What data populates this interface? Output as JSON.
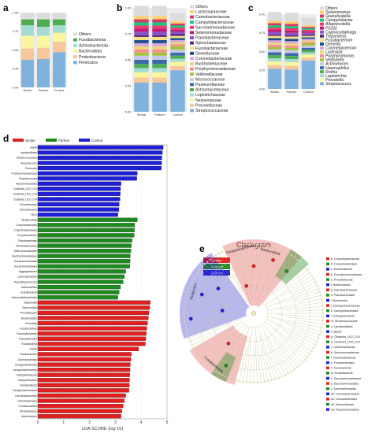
{
  "panel_labels": [
    "a",
    "b",
    "c",
    "d",
    "e"
  ],
  "chart_data": [
    {
      "id": "a",
      "type": "bar",
      "stacked": true,
      "categories": [
        "Stroke",
        "Partner",
        "Control"
      ],
      "ylim": [
        0,
        1
      ],
      "yticks": [
        "0.00",
        "0.25",
        "0.50",
        "0.75",
        "1.00"
      ],
      "series": [
        {
          "name": "Firmicutes",
          "color": "#7fb2dc",
          "values": [
            0.37,
            0.38,
            0.47
          ]
        },
        {
          "name": "Proteobacteria",
          "color": "#f6c79a",
          "values": [
            0.15,
            0.15,
            0.14
          ]
        },
        {
          "name": "Bacteroidota",
          "color": "#f9f69d",
          "values": [
            0.17,
            0.16,
            0.12
          ]
        },
        {
          "name": "Actinobacteriota",
          "color": "#a4dcd2",
          "values": [
            0.14,
            0.12,
            0.1
          ]
        },
        {
          "name": "Fusobacteriota",
          "color": "#4fae52",
          "values": [
            0.08,
            0.1,
            0.08
          ]
        },
        {
          "name": "Others",
          "color": "#dcdcdc",
          "values": [
            0.09,
            0.09,
            0.09
          ]
        }
      ],
      "legend": [
        "Others",
        "Fusobacteriota",
        "Actinobacteriota",
        "Bacteroidota",
        "Proteobacteria",
        "Firmicutes"
      ]
    },
    {
      "id": "b",
      "type": "bar",
      "stacked": true,
      "categories": [
        "Stroke",
        "Partner",
        "Control"
      ],
      "ylim": [
        0,
        1
      ],
      "yticks": [
        "0.00",
        "0.25",
        "0.50",
        "0.75",
        "1.00"
      ],
      "series": [
        {
          "name": "Streptococcaceae",
          "color": "#7fb2dc",
          "values": [
            0.28,
            0.28,
            0.4
          ]
        },
        {
          "name": "Prevotellaceae",
          "color": "#f6c79a",
          "values": [
            0.05,
            0.05,
            0.04
          ]
        },
        {
          "name": "Neisseriaceae",
          "color": "#f9f69d",
          "values": [
            0.05,
            0.05,
            0.04
          ]
        },
        {
          "name": "Leptotrichiaceae",
          "color": "#a4dcd2",
          "values": [
            0.04,
            0.04,
            0.03
          ]
        },
        {
          "name": "Actinomycetaceae",
          "color": "#4fae52",
          "values": [
            0.04,
            0.04,
            0.03
          ]
        },
        {
          "name": "Pasteurellaceae",
          "color": "#3b6aa6",
          "values": [
            0.04,
            0.04,
            0.03
          ]
        },
        {
          "name": "Micrococcaceae",
          "color": "#c8c8ea",
          "values": [
            0.04,
            0.04,
            0.03
          ]
        },
        {
          "name": "Veillonellaceae",
          "color": "#a1c43a",
          "values": [
            0.03,
            0.03,
            0.03
          ]
        },
        {
          "name": "Porphyromonadaceae",
          "color": "#f78f8f",
          "values": [
            0.03,
            0.03,
            0.02
          ]
        },
        {
          "name": "Burkholderiaceae",
          "color": "#eed57a",
          "values": [
            0.03,
            0.03,
            0.02
          ]
        },
        {
          "name": "Corynebacteriaceae",
          "color": "#d7a7e0",
          "values": [
            0.03,
            0.03,
            0.02
          ]
        },
        {
          "name": "Gemellaceae",
          "color": "#1d4f8f",
          "values": [
            0.03,
            0.03,
            0.02
          ]
        },
        {
          "name": "Fusobacteriaceae",
          "color": "#f6e27f",
          "values": [
            0.03,
            0.03,
            0.02
          ]
        },
        {
          "name": "Spirochaetaceae",
          "color": "#5a2d87",
          "values": [
            0.02,
            0.02,
            0.02
          ]
        },
        {
          "name": "Flavobacteriaceae",
          "color": "#8d54c7",
          "values": [
            0.03,
            0.03,
            0.02
          ]
        },
        {
          "name": "Selenomonadaceae",
          "color": "#c0187a",
          "values": [
            0.03,
            0.03,
            0.02
          ]
        },
        {
          "name": "Saccharimonadaceae",
          "color": "#ef3a6d",
          "values": [
            0.03,
            0.03,
            0.02
          ]
        },
        {
          "name": "Campylobacteraceae",
          "color": "#18c77b",
          "values": [
            0.03,
            0.03,
            0.02
          ]
        },
        {
          "name": "Carnobacteriaceae",
          "color": "#d23a6a",
          "values": [
            0.03,
            0.03,
            0.02
          ]
        },
        {
          "name": "Lachnospiraceae",
          "color": "#ffcf6b",
          "values": [
            0.03,
            0.03,
            0.02
          ]
        },
        {
          "name": "Others",
          "color": "#dcdcdc",
          "values": [
            0.1,
            0.1,
            0.08
          ]
        }
      ],
      "legend": [
        "Others",
        "Lachnospiraceae",
        "Carnobacteriaceae",
        "Campylobacteraceae",
        "Saccharimonadaceae",
        "Selenomonadaceae",
        "Flavobacteriaceae",
        "Spirochaetaceae",
        "Fusobacteriaceae",
        "Gemellaceae",
        "Corynebacteriaceae",
        "Burkholderiaceae",
        "Porphyromonadaceae",
        "Veillonellaceae",
        "Micrococcaceae",
        "Pasteurellaceae",
        "Actinomycetaceae",
        "Leptotrichiaceae",
        "Neisseriaceae",
        "Prevotellaceae",
        "Streptococcaceae"
      ]
    },
    {
      "id": "c",
      "type": "bar",
      "stacked": true,
      "categories": [
        "Stroke",
        "Partner",
        "Control"
      ],
      "ylim": [
        0,
        1
      ],
      "yticks": [
        "0.00",
        "0.25",
        "0.50",
        "0.75",
        "1.00"
      ],
      "series": [
        {
          "name": "Streptococcus",
          "color": "#7fb2dc",
          "values": [
            0.27,
            0.26,
            0.38
          ]
        },
        {
          "name": "Neisseria",
          "color": "#f6c79a",
          "values": [
            0.05,
            0.05,
            0.04
          ]
        },
        {
          "name": "Prevotella",
          "color": "#f9f69d",
          "values": [
            0.05,
            0.05,
            0.04
          ]
        },
        {
          "name": "Leptotrichia",
          "color": "#a4dcd2",
          "values": [
            0.04,
            0.04,
            0.03
          ]
        },
        {
          "name": "Rothia",
          "color": "#4fae52",
          "values": [
            0.04,
            0.04,
            0.03
          ]
        },
        {
          "name": "Haemophilus",
          "color": "#3b6aa6",
          "values": [
            0.04,
            0.04,
            0.03
          ]
        },
        {
          "name": "Actinomyces",
          "color": "#c8c8ea",
          "values": [
            0.04,
            0.04,
            0.03
          ]
        },
        {
          "name": "Veillonella",
          "color": "#a1c43a",
          "values": [
            0.03,
            0.03,
            0.03
          ]
        },
        {
          "name": "Porphyromonas",
          "color": "#f78f8f",
          "values": [
            0.03,
            0.03,
            0.02
          ]
        },
        {
          "name": "Lautropia",
          "color": "#eed57a",
          "values": [
            0.03,
            0.03,
            0.02
          ]
        },
        {
          "name": "Corynebacterium",
          "color": "#d7a7e0",
          "values": [
            0.03,
            0.03,
            0.02
          ]
        },
        {
          "name": "Gemella",
          "color": "#1d4f8f",
          "values": [
            0.03,
            0.03,
            0.02
          ]
        },
        {
          "name": "Fusobacterium",
          "color": "#f6e27f",
          "values": [
            0.03,
            0.03,
            0.02
          ]
        },
        {
          "name": "Treponema",
          "color": "#5a2d87",
          "values": [
            0.02,
            0.02,
            0.02
          ]
        },
        {
          "name": "Capnocytophaga",
          "color": "#8d54c7",
          "values": [
            0.03,
            0.03,
            0.02
          ]
        },
        {
          "name": "F0332",
          "color": "#c0187a",
          "values": [
            0.03,
            0.03,
            0.02
          ]
        },
        {
          "name": "Alloprevotella",
          "color": "#ef3a6d",
          "values": [
            0.03,
            0.03,
            0.02
          ]
        },
        {
          "name": "Campylobacter",
          "color": "#18c77b",
          "values": [
            0.03,
            0.03,
            0.02
          ]
        },
        {
          "name": "Granulicatella",
          "color": "#d23a6a",
          "values": [
            0.03,
            0.03,
            0.02
          ]
        },
        {
          "name": "Selenomonas",
          "color": "#ffcf6b",
          "values": [
            0.03,
            0.03,
            0.02
          ]
        },
        {
          "name": "Others",
          "color": "#dcdcdc",
          "values": [
            0.12,
            0.12,
            0.1
          ]
        }
      ],
      "legend": [
        "Others",
        "Selenomonas",
        "Granulicatella",
        "Campylobacter",
        "Alloprevotella",
        "F0332",
        "Capnocytophaga",
        "Treponema",
        "Fusobacterium",
        "Gemella",
        "Corynebacterium",
        "Lautropia",
        "Porphyromonas",
        "Veillonella",
        "Actinomyces",
        "Haemophilus",
        "Rothia",
        "Leptotrichia",
        "Prevotella",
        "Streptococcus"
      ]
    },
    {
      "id": "d",
      "type": "bar",
      "orientation": "horizontal",
      "xlabel": "LDA SCORE (log 10)",
      "xlim": [
        0,
        5
      ],
      "xticks": [
        "0",
        "1",
        "2",
        "3",
        "4",
        "5"
      ],
      "legend": [
        {
          "name": "Stroke",
          "color": "#e02020"
        },
        {
          "name": "Partner",
          "color": "#1f8a1f"
        },
        {
          "name": "Control",
          "color": "#1f1fd6"
        }
      ],
      "bars": [
        {
          "label": "Bacilli",
          "group": "Control",
          "value": 4.85
        },
        {
          "label": "Lactobacillales",
          "group": "Control",
          "value": 4.82
        },
        {
          "label": "Streptococcaceae",
          "group": "Control",
          "value": 4.8
        },
        {
          "label": "Streptococcus",
          "group": "Control",
          "value": 4.79
        },
        {
          "label": "Firmicutes",
          "group": "Control",
          "value": 4.78
        },
        {
          "label": "Porphyromonadaceae",
          "group": "Control",
          "value": 3.85
        },
        {
          "label": "Porphyromonas",
          "group": "Control",
          "value": 3.83
        },
        {
          "label": "Pseudomonadales",
          "group": "Control",
          "value": 3.22
        },
        {
          "label": "Clostridia_UCG_014",
          "group": "Control",
          "value": 3.2
        },
        {
          "label": "Clostridia_UCG_014",
          "group": "Control",
          "value": 3.19
        },
        {
          "label": "Clostridia_UCG_014",
          "group": "Control",
          "value": 3.18
        },
        {
          "label": "Moraxellaceae",
          "group": "Control",
          "value": 3.15
        },
        {
          "label": "Moraxellaceae",
          "group": "Control",
          "value": 3.14
        },
        {
          "label": "TM7x",
          "group": "Control",
          "value": 3.1
        },
        {
          "label": "Alloprevotella",
          "group": "Partner",
          "value": 3.85
        },
        {
          "label": "Corynebacteriales",
          "group": "Partner",
          "value": 3.75
        },
        {
          "label": "Corynebacteriaceae",
          "group": "Partner",
          "value": 3.74
        },
        {
          "label": "Corynebacterium",
          "group": "Partner",
          "value": 3.73
        },
        {
          "label": "Flavobacteriales",
          "group": "Partner",
          "value": 3.65
        },
        {
          "label": "Flavobacteriaceae",
          "group": "Partner",
          "value": 3.62
        },
        {
          "label": "Selenomonadaceae",
          "group": "Partner",
          "value": 3.6
        },
        {
          "label": "Saccharimonadaceae",
          "group": "Partner",
          "value": 3.58
        },
        {
          "label": "Saccharimonadales",
          "group": "Partner",
          "value": 3.57
        },
        {
          "label": "Saccharimonadales",
          "group": "Partner",
          "value": 3.56
        },
        {
          "label": "Aggregatibacter",
          "group": "Partner",
          "value": 3.4
        },
        {
          "label": "Lachnospiraceae",
          "group": "Partner",
          "value": 3.35
        },
        {
          "label": "Peptostreptococcus",
          "group": "Partner",
          "value": 3.3
        },
        {
          "label": "Actinobacillus",
          "group": "Partner",
          "value": 3.2
        },
        {
          "label": "Gracilibacteria",
          "group": "Partner",
          "value": 3.15
        },
        {
          "label": "Absconditabacteriales",
          "group": "Partner",
          "value": 3.1
        },
        {
          "label": "Bacteroidia",
          "group": "Stroke",
          "value": 4.35
        },
        {
          "label": "Bacteroidota",
          "group": "Stroke",
          "value": 4.33
        },
        {
          "label": "Prevotellaceae",
          "group": "Stroke",
          "value": 4.3
        },
        {
          "label": "Bacteroidales",
          "group": "Stroke",
          "value": 4.28
        },
        {
          "label": "Prevotella",
          "group": "Stroke",
          "value": 4.25
        },
        {
          "label": "Fusobacteriota",
          "group": "Stroke",
          "value": 4.22
        },
        {
          "label": "Fusobacteriaceae",
          "group": "Stroke",
          "value": 4.2
        },
        {
          "label": "Fusobacteriales",
          "group": "Stroke",
          "value": 4.18
        },
        {
          "label": "Fusobacteriia",
          "group": "Stroke",
          "value": 4.16
        },
        {
          "label": "F0332",
          "group": "Stroke",
          "value": 3.9
        },
        {
          "label": "Fusobacterium",
          "group": "Stroke",
          "value": 3.62
        },
        {
          "label": "Capnocytophaga",
          "group": "Stroke",
          "value": 3.6
        },
        {
          "label": "Campylobacterales",
          "group": "Stroke",
          "value": 3.58
        },
        {
          "label": "Campylobacteraceae",
          "group": "Stroke",
          "value": 3.57
        },
        {
          "label": "Campylobacterota",
          "group": "Stroke",
          "value": 3.56
        },
        {
          "label": "Campylobacteria",
          "group": "Stroke",
          "value": 3.55
        },
        {
          "label": "Campylobacter",
          "group": "Stroke",
          "value": 3.54
        },
        {
          "label": "Campylobacteraceae",
          "group": "Stroke",
          "value": 3.53
        },
        {
          "label": "Carnobacteriaceae",
          "group": "Stroke",
          "value": 3.4
        },
        {
          "label": "Carnobacteriales",
          "group": "Stroke",
          "value": 3.35
        },
        {
          "label": "Carnobacterium",
          "group": "Stroke",
          "value": 3.3
        },
        {
          "label": "Moraxellaceae",
          "group": "Stroke",
          "value": 3.25
        },
        {
          "label": "Acinetobacter",
          "group": "Stroke",
          "value": 3.22
        }
      ]
    },
    {
      "id": "e",
      "type": "other",
      "title": "Cladogram",
      "legend": [
        {
          "name": "Stroke",
          "color": "#e02020"
        },
        {
          "name": "Partner",
          "color": "#1f8a1f"
        },
        {
          "name": "Control",
          "color": "#1f1fd6"
        }
      ],
      "sector_labels": [
        "Firmicutes",
        "Campylobacterota",
        "Bacteroidota",
        "Fusobacteriota"
      ],
      "key": [
        "a: Corynebacteriaceae",
        "b: Corynebacteriales",
        "c: Moraxellaceae",
        "d: Porphyromonadaceae",
        "e: Prevotellaceae",
        "f: Bacteroidales",
        "g: Flavobacteriaceae",
        "h: Flavobacteriales",
        "i: Bacteroidia",
        "j: Campylobacteraceae",
        "k: Campylobacterales",
        "l: Campylobacteria",
        "m: Streptococcaceae",
        "n: Lactobacillales",
        "o: Bacilli",
        "p: Clostridia_UCG_014",
        "q: Clostridia_UCG_014",
        "r: Lachnospiraceae",
        "s: Selenomonadaceae",
        "t: Fusobacteriaceae",
        "u: Fusobacteriales",
        "v: Fusobacteriia",
        "w: Gracilibacteria",
        "x: Saccharimonadaceae",
        "y: Saccharimonadales",
        "z: Saccharimonadia",
        "a0: Carnobacteriaceae",
        "a1: Carnobacteriales",
        "a2: Moraxellaceae",
        "a3: Pseudomonadales"
      ]
    }
  ]
}
